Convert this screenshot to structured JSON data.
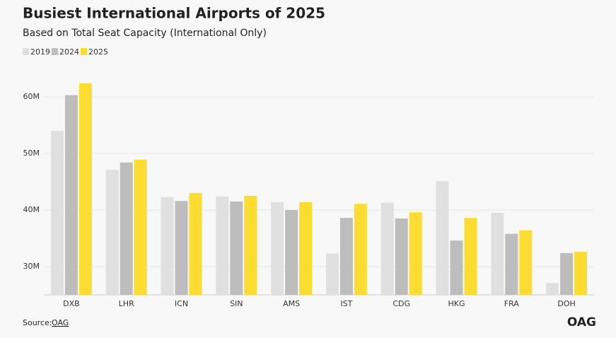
{
  "chart_data": {
    "type": "bar",
    "title": "Busiest International Airports of 2025",
    "subtitle": "Based on Total Seat Capacity (International Only)",
    "categories": [
      "DXB",
      "LHR",
      "ICN",
      "SIN",
      "AMS",
      "IST",
      "CDG",
      "HKG",
      "FRA",
      "DOH"
    ],
    "series": [
      {
        "name": "2019",
        "color": "#e0e0e0",
        "values": [
          54.0,
          47.1,
          42.3,
          42.4,
          41.4,
          32.3,
          41.3,
          45.1,
          39.5,
          27.1
        ]
      },
      {
        "name": "2024",
        "color": "#bdbdbd",
        "values": [
          60.3,
          48.4,
          41.6,
          41.5,
          40.0,
          38.6,
          38.5,
          34.6,
          35.8,
          32.4
        ]
      },
      {
        "name": "2025",
        "color": "#fddc32",
        "values": [
          62.4,
          48.9,
          43.0,
          42.5,
          41.4,
          41.1,
          39.6,
          38.6,
          36.4,
          32.6
        ]
      }
    ],
    "ylim": [
      25,
      65
    ],
    "yticks": [
      {
        "value": 30,
        "label": "30M"
      },
      {
        "value": 40,
        "label": "40M"
      },
      {
        "value": 50,
        "label": "50M"
      },
      {
        "value": 60,
        "label": "60M"
      }
    ],
    "grid": true
  },
  "source": {
    "label": "Source:",
    "link": "OAG"
  },
  "logo": "OAG"
}
